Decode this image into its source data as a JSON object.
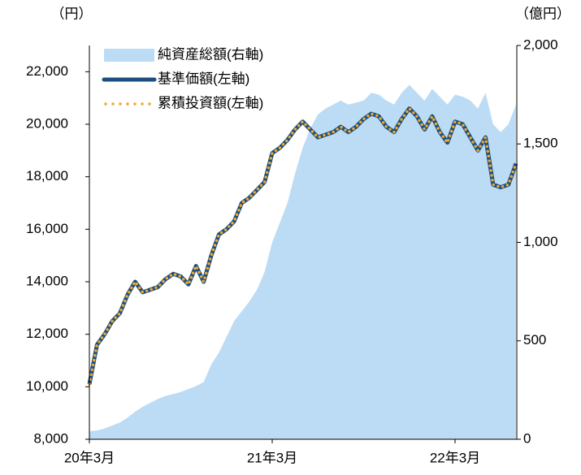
{
  "chart_data": {
    "type": "line",
    "y_label": "（円）",
    "y2_label": "（億円）",
    "categories": [
      "20年3月",
      null,
      null,
      null,
      null,
      null,
      null,
      null,
      null,
      null,
      null,
      null,
      null,
      null,
      null,
      null,
      null,
      null,
      null,
      null,
      null,
      null,
      null,
      null,
      "21年3月",
      null,
      null,
      null,
      null,
      null,
      null,
      null,
      null,
      null,
      null,
      null,
      null,
      null,
      null,
      null,
      null,
      null,
      null,
      null,
      null,
      null,
      null,
      null,
      "22年3月",
      null,
      null,
      null,
      null,
      null,
      null,
      null,
      null
    ],
    "series": [
      {
        "name": "純資産総額(右軸)",
        "type": "area",
        "axis": "y2",
        "color": "#bcdcf5",
        "values": [
          40,
          45,
          55,
          70,
          85,
          110,
          140,
          165,
          185,
          205,
          220,
          230,
          240,
          255,
          270,
          290,
          380,
          440,
          520,
          600,
          650,
          700,
          760,
          850,
          1000,
          1100,
          1200,
          1350,
          1480,
          1580,
          1650,
          1680,
          1700,
          1720,
          1700,
          1710,
          1720,
          1760,
          1750,
          1720,
          1700,
          1760,
          1800,
          1760,
          1720,
          1780,
          1740,
          1700,
          1750,
          1740,
          1720,
          1680,
          1760,
          1600,
          1560,
          1600,
          1700
        ]
      },
      {
        "name": "基準価額(左軸)",
        "type": "line",
        "color": "#1b4f7f",
        "values": [
          10100,
          11600,
          12000,
          12500,
          12800,
          13500,
          14000,
          13600,
          13700,
          13800,
          14100,
          14300,
          14200,
          13900,
          14600,
          14000,
          15000,
          15800,
          16000,
          16300,
          17000,
          17200,
          17500,
          17800,
          18900,
          19100,
          19400,
          19800,
          20100,
          19800,
          19500,
          19600,
          19700,
          19900,
          19700,
          19900,
          20200,
          20400,
          20300,
          19900,
          19700,
          20200,
          20600,
          20300,
          19800,
          20300,
          19700,
          19300,
          20100,
          20000,
          19500,
          19000,
          19500,
          17700,
          17600,
          17700,
          18500
        ]
      },
      {
        "name": "累積投資額(左軸)",
        "type": "dotted",
        "color": "#f0a830",
        "values": [
          10100,
          11600,
          12000,
          12500,
          12800,
          13500,
          14000,
          13600,
          13700,
          13800,
          14100,
          14300,
          14200,
          13900,
          14600,
          14000,
          15000,
          15800,
          16000,
          16300,
          17000,
          17200,
          17500,
          17800,
          18900,
          19100,
          19400,
          19800,
          20100,
          19800,
          19500,
          19600,
          19700,
          19900,
          19700,
          19900,
          20200,
          20400,
          20300,
          19900,
          19700,
          20200,
          20600,
          20300,
          19800,
          20300,
          19700,
          19300,
          20100,
          20000,
          19500,
          19000,
          19500,
          17700,
          17600,
          17700,
          18500
        ]
      }
    ],
    "ylim": [
      8000,
      23000
    ],
    "yticks": [
      {
        "value": 8000,
        "label": "8,000"
      },
      {
        "value": 10000,
        "label": "10,000"
      },
      {
        "value": 12000,
        "label": "12,000"
      },
      {
        "value": 14000,
        "label": "14,000"
      },
      {
        "value": 16000,
        "label": "16,000"
      },
      {
        "value": 18000,
        "label": "18,000"
      },
      {
        "value": 20000,
        "label": "20,000"
      },
      {
        "value": 22000,
        "label": "22,000"
      }
    ],
    "y2lim": [
      0,
      2000
    ],
    "y2ticks": [
      0,
      500,
      {
        "value": 1000,
        "label": "1,000"
      },
      {
        "value": 1500,
        "label": "1,500"
      },
      {
        "value": 2000,
        "label": "2,000"
      }
    ],
    "legend": "upper left",
    "grid": false
  }
}
